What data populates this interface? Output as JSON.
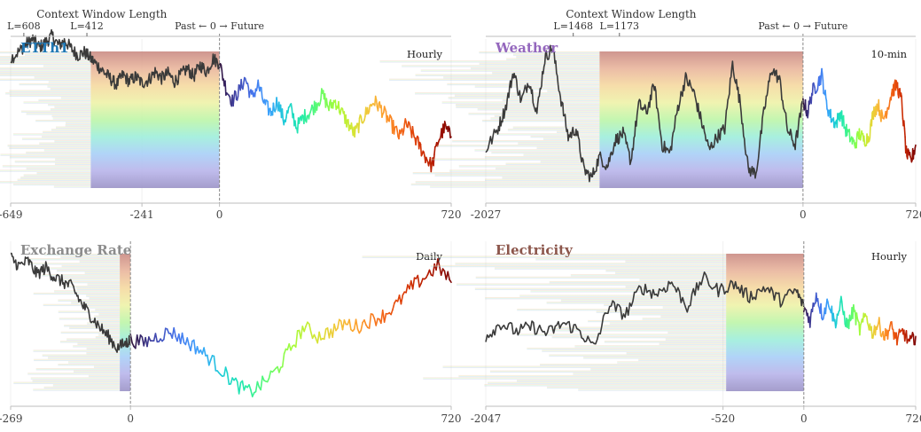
{
  "figure": {
    "top_header_label": "Context Window Length",
    "direction_label": "Past ← 0 → Future",
    "colors": {
      "history_line": "#3a3a3a",
      "axis": "#bdbdbd",
      "grid": "#f0f0f0",
      "zero_line": "#8a8a8a",
      "turbo_stops": [
        "#30123b",
        "#4145ab",
        "#4675ed",
        "#39a2fc",
        "#1bcfd4",
        "#24eca6",
        "#61fc6c",
        "#a4fc3b",
        "#d1e834",
        "#f3c63a",
        "#fe9b2d",
        "#f36315",
        "#d93806",
        "#b11901",
        "#7a0403"
      ]
    },
    "panels": [
      {
        "id": "etth1",
        "title": "ETTh1",
        "title_color": "#1f77b4",
        "frequency_label": "Hourly",
        "show_header": true,
        "context_markers": [
          {
            "label": "L=608",
            "value": -608
          },
          {
            "label": "L=412",
            "value": -412
          }
        ],
        "chart_data": {
          "type": "line",
          "title": "ETTh1",
          "xlim": [
            -649,
            720
          ],
          "x_ticks": [
            -649,
            -241,
            0,
            720
          ],
          "x_tick_labels": [
            "-649",
            "-241",
            "0",
            "720"
          ],
          "grid": true,
          "legend": "none",
          "series": [
            {
              "part": "history",
              "x": [
                -649,
                -620,
                -600,
                -580,
                -560,
                -540,
                -520,
                -500,
                -480,
                -460,
                -440,
                -420,
                -400,
                -380,
                -360,
                -340,
                -320,
                -300,
                -280,
                -260,
                -241,
                -220,
                -200,
                -180,
                -160,
                -140,
                -120,
                -100,
                -80,
                -60,
                -40,
                -20,
                0
              ],
              "y": [
                0.88,
                0.93,
                0.97,
                1.0,
                0.95,
                0.98,
                1.02,
                0.96,
                0.99,
                0.94,
                0.9,
                0.92,
                0.88,
                0.84,
                0.8,
                0.76,
                0.72,
                0.78,
                0.74,
                0.77,
                0.73,
                0.75,
                0.8,
                0.76,
                0.79,
                0.74,
                0.78,
                0.82,
                0.77,
                0.84,
                0.8,
                0.88,
                0.85
              ]
            },
            {
              "part": "forecast",
              "x": [
                0,
                20,
                40,
                60,
                80,
                100,
                120,
                140,
                160,
                180,
                200,
                220,
                240,
                260,
                280,
                300,
                320,
                340,
                360,
                380,
                400,
                420,
                440,
                460,
                480,
                500,
                520,
                540,
                560,
                580,
                600,
                620,
                640,
                660,
                680,
                700,
                720
              ],
              "y": [
                0.85,
                0.7,
                0.62,
                0.68,
                0.76,
                0.64,
                0.72,
                0.6,
                0.55,
                0.62,
                0.5,
                0.58,
                0.46,
                0.52,
                0.55,
                0.6,
                0.66,
                0.58,
                0.62,
                0.55,
                0.48,
                0.42,
                0.5,
                0.56,
                0.62,
                0.58,
                0.52,
                0.46,
                0.4,
                0.48,
                0.42,
                0.35,
                0.28,
                0.22,
                0.38,
                0.46,
                0.4
              ]
            }
          ]
        }
      },
      {
        "id": "weather",
        "title": "Weather",
        "title_color": "#9467bd",
        "frequency_label": "10-min",
        "show_header": true,
        "context_markers": [
          {
            "label": "L=1468",
            "value": -1468
          },
          {
            "label": "L=1173",
            "value": -1173
          }
        ],
        "chart_data": {
          "type": "line",
          "title": "Weather",
          "xlim": [
            -2027,
            720
          ],
          "x_ticks": [
            -2027,
            0,
            720
          ],
          "x_tick_labels": [
            "-2027",
            "0",
            "720"
          ],
          "grid": true,
          "legend": "none",
          "series": [
            {
              "part": "history",
              "x": [
                -2027,
                -1950,
                -1900,
                -1850,
                -1800,
                -1750,
                -1700,
                -1650,
                -1600,
                -1550,
                -1500,
                -1450,
                -1400,
                -1350,
                -1300,
                -1250,
                -1200,
                -1150,
                -1100,
                -1050,
                -1000,
                -950,
                -900,
                -850,
                -800,
                -750,
                -700,
                -650,
                -600,
                -550,
                -500,
                -450,
                -400,
                -350,
                -300,
                -250,
                -200,
                -150,
                -100,
                -50,
                0
              ],
              "y": [
                0.32,
                0.45,
                0.58,
                0.8,
                0.62,
                0.75,
                0.55,
                0.88,
                0.95,
                0.65,
                0.4,
                0.45,
                0.2,
                0.15,
                0.28,
                0.22,
                0.38,
                0.42,
                0.25,
                0.6,
                0.55,
                0.72,
                0.35,
                0.3,
                0.58,
                0.76,
                0.68,
                0.5,
                0.32,
                0.4,
                0.45,
                0.85,
                0.6,
                0.2,
                0.18,
                0.55,
                0.82,
                0.75,
                0.45,
                0.35,
                0.62
              ]
            },
            {
              "part": "forecast",
              "x": [
                0,
                30,
                60,
                90,
                120,
                150,
                180,
                210,
                240,
                270,
                300,
                330,
                360,
                390,
                420,
                450,
                480,
                510,
                540,
                570,
                600,
                630,
                660,
                690,
                720
              ],
              "y": [
                0.62,
                0.55,
                0.68,
                0.72,
                0.78,
                0.6,
                0.52,
                0.48,
                0.55,
                0.45,
                0.4,
                0.35,
                0.42,
                0.38,
                0.4,
                0.55,
                0.6,
                0.5,
                0.58,
                0.68,
                0.72,
                0.62,
                0.3,
                0.25,
                0.35
              ]
            }
          ]
        }
      },
      {
        "id": "exchange",
        "title": "Exchange Rate",
        "title_color": "#8c8c8c",
        "frequency_label": "Daily",
        "show_header": false,
        "context_markers": [],
        "chart_data": {
          "type": "line",
          "title": "Exchange Rate",
          "xlim": [
            -269,
            720
          ],
          "x_ticks": [
            -269,
            0,
            720
          ],
          "x_tick_labels": [
            "-269",
            "0",
            "720"
          ],
          "grid": true,
          "legend": "none",
          "series": [
            {
              "part": "history",
              "x": [
                -269,
                -250,
                -230,
                -210,
                -190,
                -170,
                -150,
                -130,
                -110,
                -90,
                -70,
                -50,
                -30,
                -10,
                0
              ],
              "y": [
                0.9,
                0.85,
                0.88,
                0.8,
                0.84,
                0.78,
                0.75,
                0.72,
                0.62,
                0.55,
                0.48,
                0.42,
                0.35,
                0.38,
                0.4
              ]
            },
            {
              "part": "forecast",
              "x": [
                0,
                30,
                60,
                90,
                120,
                150,
                180,
                210,
                240,
                270,
                300,
                330,
                360,
                390,
                420,
                450,
                480,
                510,
                540,
                570,
                600,
                630,
                660,
                690,
                720
              ],
              "y": [
                0.4,
                0.38,
                0.42,
                0.45,
                0.4,
                0.35,
                0.28,
                0.2,
                0.12,
                0.08,
                0.14,
                0.22,
                0.35,
                0.48,
                0.42,
                0.45,
                0.5,
                0.48,
                0.52,
                0.55,
                0.62,
                0.72,
                0.78,
                0.85,
                0.75
              ]
            }
          ]
        }
      },
      {
        "id": "electricity",
        "title": "Electricity",
        "title_color": "#8c564b",
        "frequency_label": "Hourly",
        "show_header": false,
        "context_markers": [],
        "chart_data": {
          "type": "line",
          "title": "Electricity",
          "xlim": [
            -2047,
            720
          ],
          "x_ticks": [
            -2047,
            -520,
            0,
            720
          ],
          "x_tick_labels": [
            "-2047",
            "-520",
            "0",
            "720"
          ],
          "grid": true,
          "legend": "none",
          "series": [
            {
              "part": "history",
              "x": [
                -2047,
                -1950,
                -1850,
                -1750,
                -1650,
                -1550,
                -1450,
                -1350,
                -1250,
                -1150,
                -1050,
                -950,
                -850,
                -750,
                -650,
                -550,
                -450,
                -350,
                -250,
                -150,
                -50,
                0
              ],
              "y": [
                0.42,
                0.5,
                0.45,
                0.48,
                0.44,
                0.5,
                0.46,
                0.35,
                0.62,
                0.55,
                0.72,
                0.68,
                0.75,
                0.6,
                0.78,
                0.7,
                0.74,
                0.66,
                0.72,
                0.64,
                0.7,
                0.6
              ]
            },
            {
              "part": "forecast",
              "x": [
                0,
                40,
                80,
                120,
                160,
                200,
                240,
                280,
                320,
                360,
                400,
                440,
                480,
                520,
                560,
                600,
                640,
                680,
                720
              ],
              "y": [
                0.6,
                0.52,
                0.68,
                0.55,
                0.64,
                0.5,
                0.62,
                0.48,
                0.58,
                0.46,
                0.55,
                0.44,
                0.5,
                0.42,
                0.48,
                0.4,
                0.45,
                0.38,
                0.42
              ]
            }
          ]
        }
      }
    ]
  }
}
